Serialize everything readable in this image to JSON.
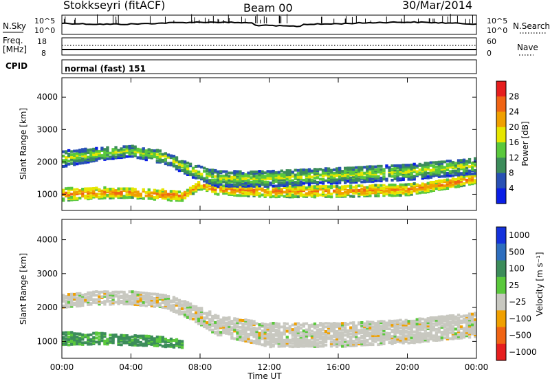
{
  "header": {
    "station": "Stokkseyri (fitACF)",
    "beam": "Beam 00",
    "date": "30/Mar/2014"
  },
  "sky_panel": {
    "left_label": "N.Sky",
    "left_ticks": [
      "10^5",
      "10^0"
    ],
    "right_ticks": [
      "10^5",
      "10^0"
    ],
    "right_label": "N.Search"
  },
  "freq_panel": {
    "left_label_1": "Freq.",
    "left_label_2": "[MHz]",
    "left_ticks": [
      "18",
      "8"
    ],
    "right_ticks": [
      "60",
      "0"
    ],
    "right_label": "Nave"
  },
  "cpid_panel": {
    "label": "CPID",
    "mode": "normal (fast) 151"
  },
  "colors": {
    "power": [
      "#0a1ee6",
      "#2850b4",
      "#3c8c5a",
      "#5ac83c",
      "#e6e600",
      "#f0a000",
      "#f06414",
      "#e61e1e"
    ],
    "velocity": [
      "#1432dc",
      "#2d6ebe",
      "#3c8c5a",
      "#5ac83c",
      "#c8c8c0",
      "#f0a000",
      "#f06414",
      "#e61e1e"
    ]
  },
  "chart_data": [
    {
      "type": "heatmap",
      "name": "Power [dB]",
      "xlabel": "Time UT",
      "ylabel": "Slant Range [km]",
      "xlim": [
        0,
        24
      ],
      "ylim": [
        500,
        4600
      ],
      "x_ticks": [
        "00:00",
        "04:00",
        "08:00",
        "12:00",
        "16:00",
        "20:00",
        "00:00"
      ],
      "y_ticks": [
        1000,
        2000,
        3000,
        4000
      ],
      "colorbar_label": "Power [dB]",
      "colorbar_ticks": [
        4,
        8,
        12,
        16,
        20,
        24,
        28
      ],
      "echo_bands": [
        {
          "t": [
            0,
            2,
            4,
            6,
            7,
            8,
            9,
            12,
            16,
            20,
            22,
            24
          ],
          "center": [
            1000,
            1050,
            1050,
            1000,
            950,
            1300,
            1150,
            1100,
            1100,
            1150,
            1300,
            1500
          ],
          "width": [
            400,
            350,
            300,
            350,
            300,
            250,
            300,
            350,
            350,
            350,
            300,
            300
          ],
          "power": 24
        },
        {
          "t": [
            0,
            2,
            4,
            6,
            7.5,
            9,
            12,
            16,
            20,
            24
          ],
          "center": [
            2100,
            2250,
            2350,
            2150,
            1750,
            1500,
            1500,
            1600,
            1700,
            1900
          ],
          "width": [
            500,
            400,
            350,
            400,
            400,
            500,
            500,
            500,
            500,
            500
          ],
          "power": 14
        }
      ]
    },
    {
      "type": "heatmap",
      "name": "Velocity [m s^-1]",
      "xlabel": "Time UT",
      "ylabel": "Slant Range [km]",
      "xlim": [
        0,
        24
      ],
      "ylim": [
        500,
        4600
      ],
      "x_ticks": [
        "00:00",
        "04:00",
        "08:00",
        "12:00",
        "16:00",
        "20:00",
        "00:00"
      ],
      "y_ticks": [
        1000,
        2000,
        3000,
        4000
      ],
      "colorbar_label": "Velocity [m s⁻¹]",
      "colorbar_ticks": [
        "1000",
        "500",
        "100",
        "25",
        "−25",
        "−100",
        "−500",
        "−1000"
      ],
      "echo_bands": [
        {
          "t": [
            0,
            2,
            4,
            6,
            7.5,
            9,
            12,
            16,
            20,
            24
          ],
          "center": [
            2200,
            2300,
            2300,
            2200,
            1900,
            1500,
            1200,
            1200,
            1300,
            1500
          ],
          "width": [
            400,
            400,
            400,
            400,
            500,
            600,
            700,
            700,
            700,
            700
          ],
          "velocity": 0
        },
        {
          "t": [
            0,
            2,
            4,
            6,
            7
          ],
          "center": [
            1100,
            1100,
            1050,
            1000,
            950
          ],
          "width": [
            400,
            350,
            300,
            300,
            250
          ],
          "velocity": 200
        }
      ]
    }
  ]
}
